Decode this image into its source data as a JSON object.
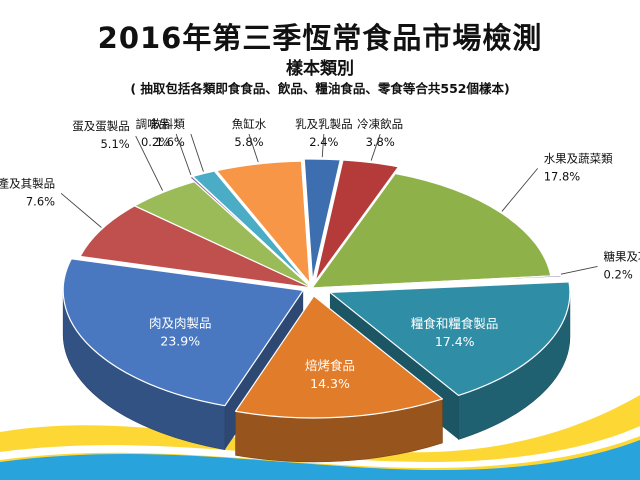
{
  "chart_data": {
    "type": "pie",
    "title": "2016年第三季恆常食品市場檢測",
    "subtitle": "樣本類別",
    "note": "( 抽取包括各類即食食品、飲品、糧油食品、零食等合共552個樣本)",
    "categories": [
      "乳及乳製品",
      "冷凍飲品",
      "水果及蔬菜類",
      "糖果及巧克力製品",
      "糧食和糧食製品",
      "焙烤食品",
      "肉及肉製品",
      "水產及其製品",
      "蛋及蛋製品",
      "調味品",
      "飲料類",
      "魚缸水"
    ],
    "values": [
      2.4,
      3.8,
      17.8,
      0.2,
      17.4,
      14.3,
      23.9,
      7.6,
      5.1,
      0.2,
      1.6,
      5.8
    ],
    "value_labels": [
      "2.4%",
      "3.8%",
      "17.8%",
      "0.2%",
      "17.4%",
      "14.3%",
      "23.9%",
      "7.6%",
      "5.1%",
      "0.2%",
      "1.6%",
      "5.8%"
    ],
    "colors": [
      "#3d6fb0",
      "#b53a3a",
      "#8fb14a",
      "#6a4e9a",
      "#2f8ea6",
      "#e07c2a",
      "#4a78c0",
      "#c0504d",
      "#9bbb59",
      "#8064a2",
      "#4bacc6",
      "#f79646"
    ],
    "legend": "none"
  }
}
